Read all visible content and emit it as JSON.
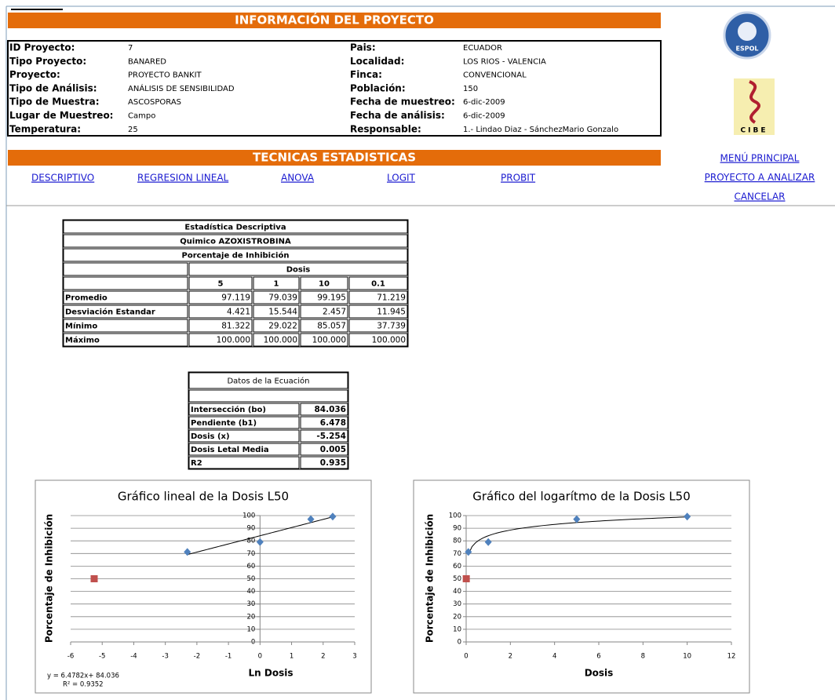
{
  "header": {
    "title": "INFORMACIÓN DEL PROYECTO"
  },
  "info": {
    "left": [
      {
        "label": "ID Proyecto:",
        "value": "7"
      },
      {
        "label": "Tipo Proyecto:",
        "value": "BANARED"
      },
      {
        "label": "Proyecto:",
        "value": "PROYECTO BANKIT"
      },
      {
        "label": "Tipo de Análisis:",
        "value": "ANÁLISIS DE SENSIBILIDAD"
      },
      {
        "label": "Tipo de Muestra:",
        "value": "ASCOSPORAS"
      },
      {
        "label": "Lugar de Muestreo:",
        "value": "Campo"
      },
      {
        "label": "Temperatura:",
        "value": "25"
      }
    ],
    "right": [
      {
        "label": "Pais:",
        "value": "ECUADOR"
      },
      {
        "label": "Localidad:",
        "value": "LOS RIOS - VALENCIA"
      },
      {
        "label": "Finca:",
        "value": "CONVENCIONAL"
      },
      {
        "label": "Población:",
        "value": "150"
      },
      {
        "label": "Fecha de muestreo:",
        "value": "6-dic-2009"
      },
      {
        "label": "Fecha de análisis:",
        "value": "6-dic-2009"
      },
      {
        "label": "Responsable:",
        "value": "1.- Lindao Diaz - SánchezMario Gonzalo"
      }
    ]
  },
  "logos": [
    "ESPOL",
    "CIBE"
  ],
  "techniques": {
    "title": "TECNICAS ESTADISTICAS",
    "links": [
      "DESCRIPTIVO",
      "REGRESION LINEAL",
      "ANOVA",
      "LOGIT",
      "PROBIT"
    ]
  },
  "menu": [
    "MENÚ PRINCIPAL",
    "PROYECTO A ANALIZAR",
    "CANCELAR"
  ],
  "table": {
    "titles": [
      "Estadística Descriptiva",
      "Quimico AZOXISTROBINA",
      "Porcentaje de Inhibición"
    ],
    "group": "Dosis",
    "columns": [
      "5",
      "1",
      "10",
      "0.1"
    ],
    "rows": [
      {
        "label": "Promedio",
        "values": [
          "97.119",
          "79.039",
          "99.195",
          "71.219"
        ]
      },
      {
        "label": "Desviación Estandar",
        "values": [
          "4.421",
          "15.544",
          "2.457",
          "11.945"
        ]
      },
      {
        "label": "Mínimo",
        "values": [
          "81.322",
          "29.022",
          "85.057",
          "37.739"
        ]
      },
      {
        "label": "Máximo",
        "values": [
          "100.000",
          "100.000",
          "100.000",
          "100.000"
        ]
      }
    ]
  },
  "equation": {
    "title": "Datos de la Ecuación",
    "rows": [
      {
        "label": "Intersección (bo)",
        "value": "84.036"
      },
      {
        "label": "Pendiente (b1)",
        "value": "6.478"
      },
      {
        "label": "Dosis (x)",
        "value": "-5.254"
      },
      {
        "label": "Dosis Letal Media",
        "value": "0.005"
      },
      {
        "label": "R2",
        "value": "0.935"
      }
    ]
  },
  "chart_data": [
    {
      "type": "scatter",
      "title": "Gráfico lineal de la Dosis L50",
      "x_label": "Ln Dosis",
      "y_label": "Porcentaje de Inhibición",
      "xlim": [
        -6,
        3
      ],
      "xticks": [
        -6,
        -5,
        -4,
        -3,
        -2,
        -1,
        0,
        1,
        2,
        3
      ],
      "ylim": [
        0,
        100
      ],
      "yticks": [
        0,
        10,
        20,
        30,
        40,
        50,
        60,
        70,
        80,
        90,
        100
      ],
      "grid": true,
      "series": [
        {
          "color": "#4f81bd",
          "marker": "diamond",
          "x": [
            1.609,
            0,
            2.303,
            -2.303
          ],
          "values": [
            97.119,
            79.039,
            99.195,
            71.219
          ]
        },
        {
          "color": "#c0504d",
          "marker": "square",
          "x": [
            -5.254
          ],
          "values": [
            50
          ]
        }
      ],
      "trendline": {
        "type": "linear",
        "slope": 6.4782,
        "intercept": 84.036,
        "from": -2.303,
        "to": 2.303
      },
      "annotations": [
        "y = 6.4782x+ 84.036",
        "R² = 0.9352"
      ]
    },
    {
      "type": "scatter",
      "title": "Gráfico del logarítmo de la Dosis L50",
      "x_label": "Dosis",
      "y_label": "Porcentaje de Inhibición",
      "xlim": [
        0,
        12
      ],
      "xticks": [
        0,
        2,
        4,
        6,
        8,
        10,
        12
      ],
      "ylim": [
        0,
        100
      ],
      "yticks": [
        0,
        10,
        20,
        30,
        40,
        50,
        60,
        70,
        80,
        90,
        100
      ],
      "grid": true,
      "series": [
        {
          "color": "#4f81bd",
          "marker": "diamond",
          "x": [
            5,
            1,
            10,
            0.1
          ],
          "values": [
            97.119,
            79.039,
            99.195,
            71.219
          ]
        },
        {
          "color": "#c0504d",
          "marker": "square",
          "x": [
            0.005
          ],
          "values": [
            50
          ]
        }
      ],
      "trendline": {
        "type": "log",
        "slope": 6.4782,
        "intercept": 84.036,
        "from": 0.1,
        "to": 10
      }
    }
  ]
}
